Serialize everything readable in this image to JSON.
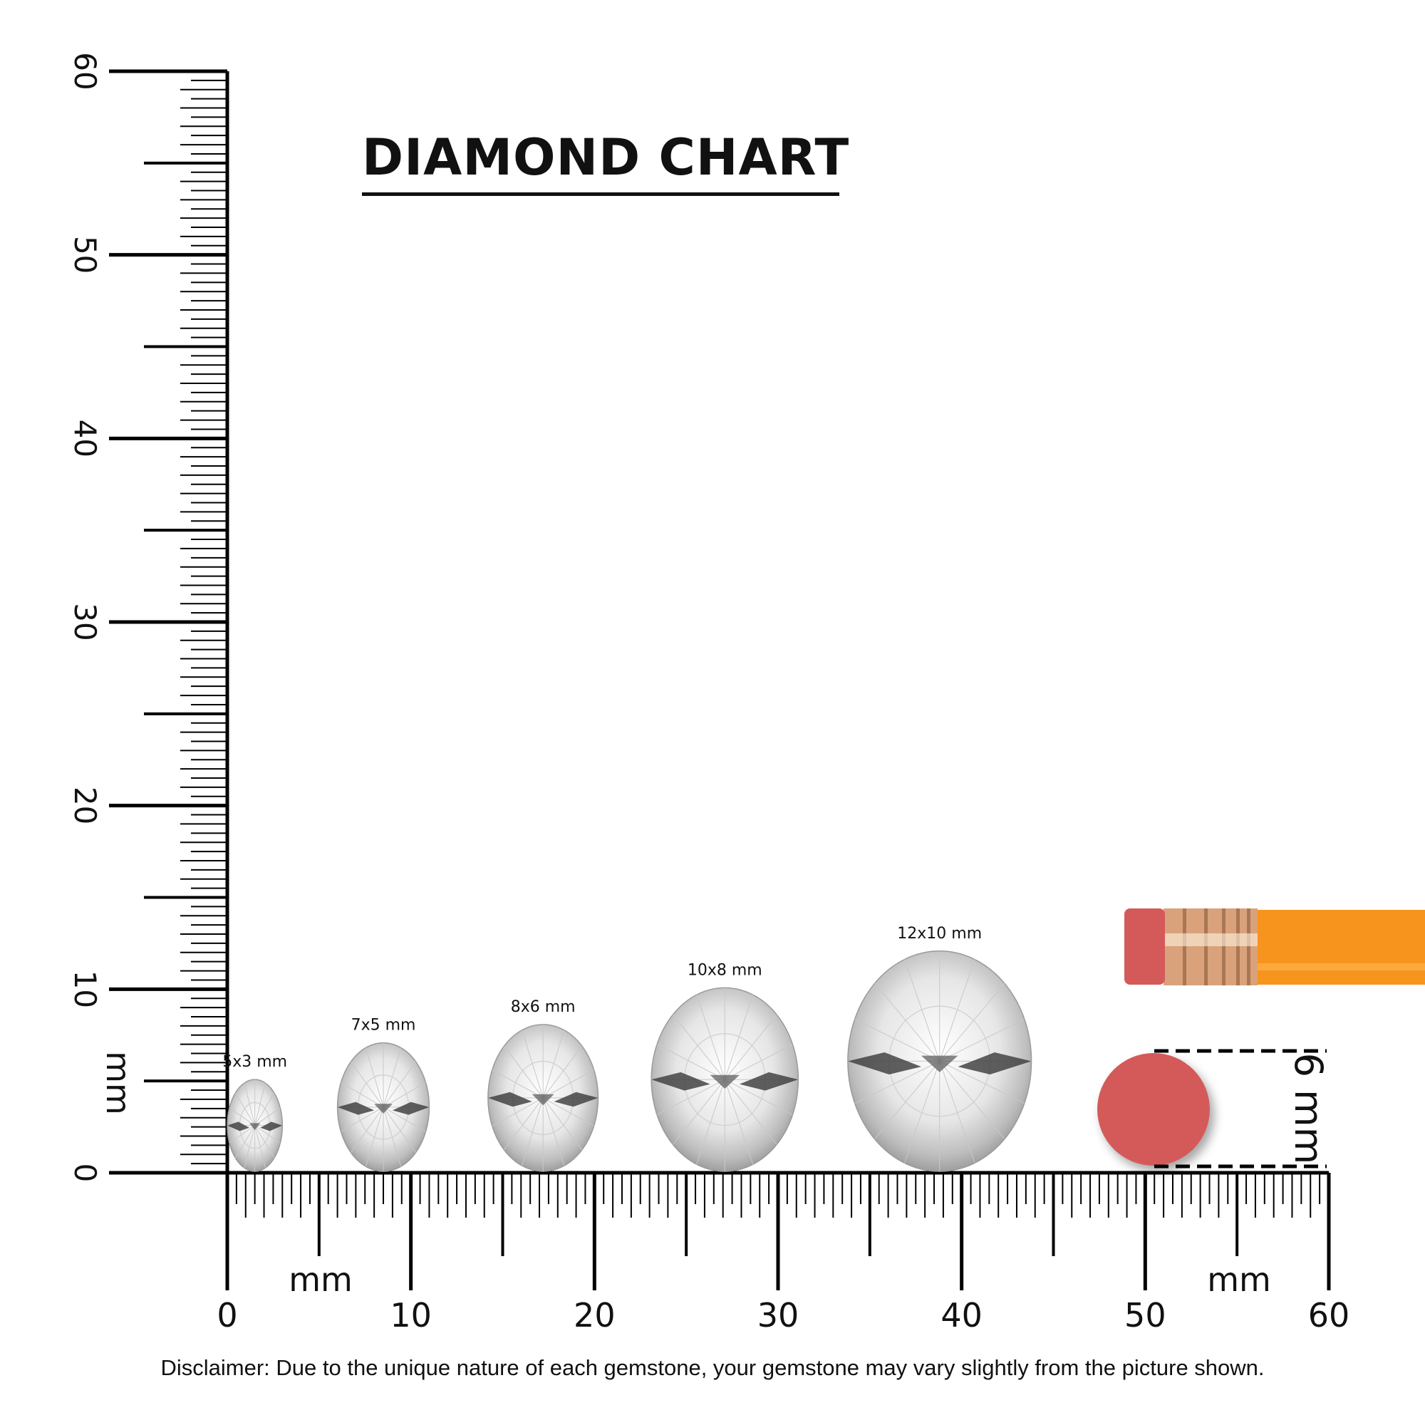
{
  "title": "DIAMOND CHART",
  "disclaimer": "Disclaimer: Due to the unique nature of each gemstone, your gemstone may vary slightly from the picture shown.",
  "ruler": {
    "unit_label": "mm",
    "range_mm": [
      0,
      60
    ],
    "major_labels": [
      "0",
      "10",
      "20",
      "30",
      "40",
      "50",
      "60"
    ]
  },
  "diamonds": [
    {
      "label": "5x3 mm",
      "length_mm": 5,
      "width_mm": 3,
      "position_mm": 1.5
    },
    {
      "label": "7x5 mm",
      "length_mm": 7,
      "width_mm": 5,
      "position_mm": 8.5
    },
    {
      "label": "8x6 mm",
      "length_mm": 8,
      "width_mm": 6,
      "position_mm": 17.2
    },
    {
      "label": "10x8 mm",
      "length_mm": 10,
      "width_mm": 8,
      "position_mm": 27.1
    },
    {
      "label": "12x10 mm",
      "length_mm": 12,
      "width_mm": 10,
      "position_mm": 38.8
    }
  ],
  "reference": {
    "eraser_label": "6 mm",
    "eraser_color": "#d45a5a",
    "pencil_color": "#f7941d",
    "ferrule_color": "#d9a27a"
  }
}
